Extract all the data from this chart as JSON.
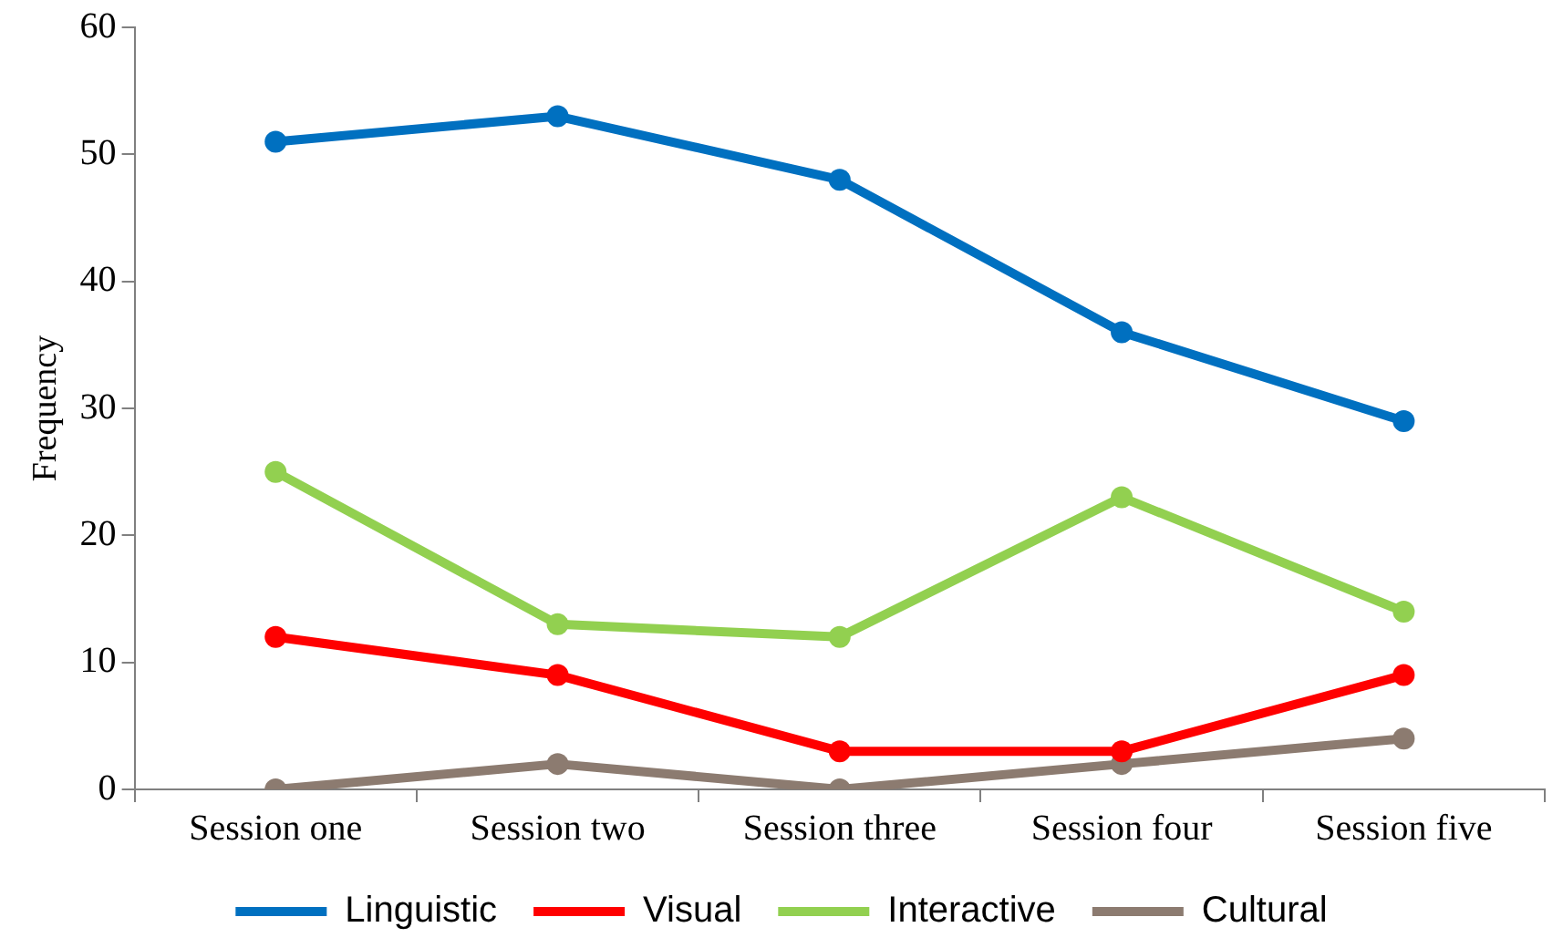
{
  "chart_data": {
    "type": "line",
    "ylabel": "Frequency",
    "categories": [
      "Session one",
      "Session two",
      "Session three",
      "Session four",
      "Session five"
    ],
    "series": [
      {
        "name": "Linguistic",
        "color": "#0070c0",
        "values": [
          51,
          53,
          48,
          36,
          29
        ]
      },
      {
        "name": "Visual",
        "color": "#ff0000",
        "values": [
          12,
          9,
          3,
          3,
          9
        ]
      },
      {
        "name": "Interactive",
        "color": "#92d050",
        "values": [
          25,
          13,
          12,
          23,
          14
        ]
      },
      {
        "name": "Cultural",
        "color": "#8c7b70",
        "values": [
          0,
          2,
          0,
          2,
          4
        ]
      }
    ],
    "ylim": [
      0,
      60
    ],
    "yticks": [
      0,
      10,
      20,
      30,
      40,
      50,
      60
    ],
    "grid": false,
    "legend": "bottom",
    "marker": "circle",
    "line_style": "solid"
  }
}
